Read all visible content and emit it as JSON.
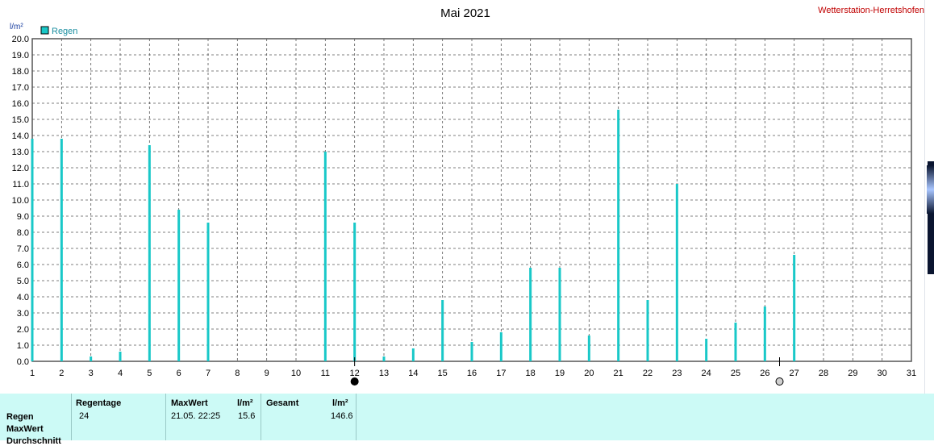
{
  "header": {
    "title": "Mai 2021",
    "station": "Wetterstation-Herretshofen"
  },
  "legend": {
    "label": "Regen",
    "color": "#19c8c8"
  },
  "axis": {
    "y_unit": "l/m²"
  },
  "chart_data": {
    "type": "bar",
    "title": "Mai 2021",
    "xlabel": "",
    "ylabel": "l/m²",
    "xlim": [
      1,
      31
    ],
    "ylim": [
      0,
      20
    ],
    "y_tick_step": 1,
    "grid": true,
    "legend_position": "top-left",
    "x_ticks": [
      "1",
      "2",
      "3",
      "4",
      "5",
      "6",
      "7",
      "8",
      "9",
      "10",
      "11",
      "12",
      "13",
      "14",
      "15",
      "16",
      "17",
      "18",
      "19",
      "20",
      "21",
      "22",
      "23",
      "24",
      "25",
      "26",
      "27",
      "28",
      "29",
      "30",
      "31"
    ],
    "y_ticks": [
      "0.0",
      "1.0",
      "2.0",
      "3.0",
      "4.0",
      "5.0",
      "6.0",
      "7.0",
      "8.0",
      "9.0",
      "10.0",
      "11.0",
      "12.0",
      "13.0",
      "14.0",
      "15.0",
      "16.0",
      "17.0",
      "18.0",
      "19.0",
      "20.0"
    ],
    "series": [
      {
        "name": "Regen",
        "color": "#19c8c8",
        "x": [
          1,
          2,
          3,
          4,
          5,
          6,
          7,
          11,
          12,
          13,
          14,
          15,
          16,
          17,
          18,
          19,
          20,
          21,
          22,
          23,
          24,
          25,
          26,
          27
        ],
        "values": [
          13.8,
          13.8,
          0.3,
          0.6,
          13.4,
          9.4,
          8.6,
          13.0,
          8.6,
          0.3,
          0.8,
          3.8,
          1.2,
          1.8,
          5.8,
          5.8,
          1.6,
          15.6,
          3.8,
          11.0,
          1.4,
          2.4,
          3.4,
          6.6
        ]
      }
    ],
    "markers": [
      {
        "day": 12,
        "symbol": "full-moon-filled-icon"
      },
      {
        "day": 26.5,
        "symbol": "new-moon-outline-icon"
      }
    ]
  },
  "table": {
    "row_labels": [
      "Regen",
      "MaxWert",
      "Durchschnitt"
    ],
    "regentage_header": "Regentage",
    "regentage_value": "24",
    "maxwert_header": "MaxWert",
    "maxwert_unit": "l/m²",
    "maxwert_date": "21.05.  22:25",
    "maxwert_value": "15.6",
    "gesamt_header": "Gesamt",
    "gesamt_unit": "l/m²",
    "gesamt_value": "146.6"
  }
}
